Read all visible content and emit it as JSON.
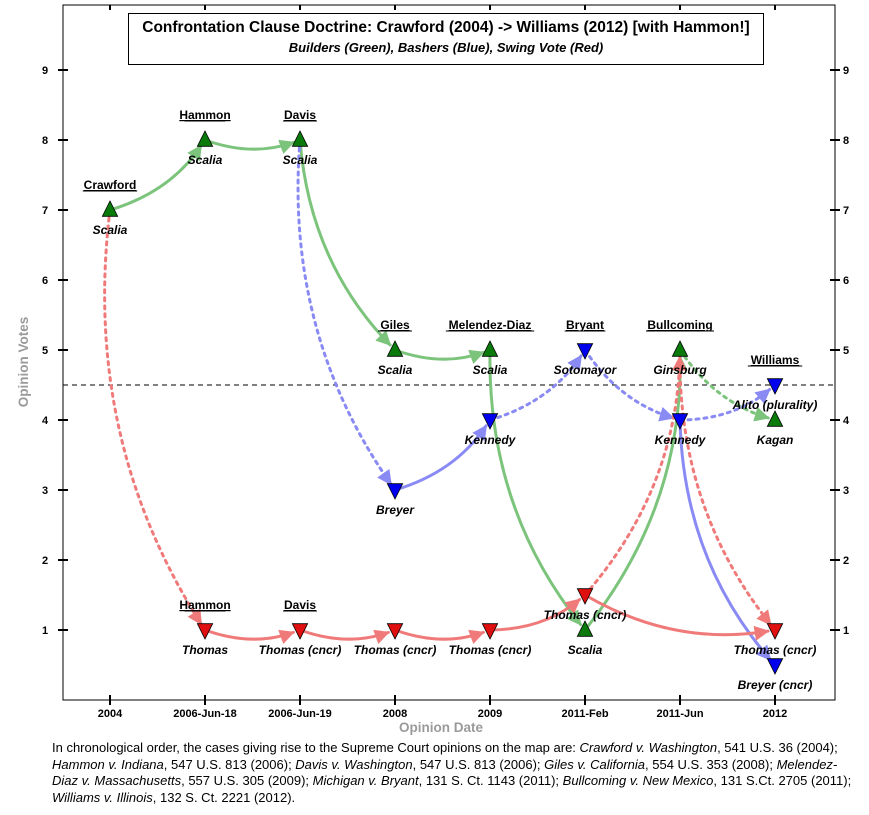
{
  "chart_data": {
    "type": "scatter",
    "title": "Confrontation Clause Doctrine: Crawford (2004) -> Williams (2012) [with Hammon!]",
    "subtitle": "Builders (Green), Bashers (Blue), Swing Vote (Red)",
    "xlabel": "Opinion Date",
    "ylabel": "Opinion Votes",
    "categories": [
      "2004",
      "2006-Jun-18",
      "2006-Jun-19",
      "2008",
      "2009",
      "2011-Feb",
      "2011-Jun",
      "2012"
    ],
    "ylim": [
      0,
      9.9
    ],
    "yticks": [
      "1",
      "2",
      "3",
      "4",
      "5",
      "6",
      "7",
      "8",
      "9"
    ],
    "threshold": 4.5,
    "grid": false,
    "colors": {
      "builders": "#0a7a0a",
      "bashers": "#0000ee",
      "swing": "#e01010"
    },
    "series": [
      {
        "name": "Builders (Green)",
        "color": "#0a7a0a",
        "marker": "triangle-up",
        "points": [
          {
            "x": "2004",
            "y": 7,
            "justice": "Scalia"
          },
          {
            "x": "2006-Jun-18",
            "y": 8,
            "justice": "Scalia"
          },
          {
            "x": "2006-Jun-19",
            "y": 8,
            "justice": "Scalia"
          },
          {
            "x": "2008",
            "y": 5,
            "justice": "Scalia"
          },
          {
            "x": "2009",
            "y": 5,
            "justice": "Scalia"
          },
          {
            "x": "2011-Feb",
            "y": 1,
            "justice": "Scalia"
          },
          {
            "x": "2011-Jun",
            "y": 5,
            "justice": "Ginsburg"
          },
          {
            "x": "2012",
            "y": 4,
            "justice": "Kagan"
          }
        ]
      },
      {
        "name": "Bashers (Blue)",
        "color": "#0000ee",
        "marker": "triangle-down",
        "points": [
          {
            "x": "2008",
            "y": 3,
            "justice": "Breyer"
          },
          {
            "x": "2009",
            "y": 4,
            "justice": "Kennedy"
          },
          {
            "x": "2011-Feb",
            "y": 5,
            "justice": "Sotomayor"
          },
          {
            "x": "2011-Jun",
            "y": 4,
            "justice": "Kennedy"
          },
          {
            "x": "2012",
            "y": 4.5,
            "justice": "Alito (plurality)"
          },
          {
            "x": "2012",
            "y": 0.5,
            "justice": "Breyer (cncr)"
          }
        ]
      },
      {
        "name": "Swing Vote (Red)",
        "color": "#e01010",
        "marker": "triangle-down",
        "points": [
          {
            "x": "2006-Jun-18",
            "y": 1,
            "justice": "Thomas"
          },
          {
            "x": "2006-Jun-19",
            "y": 1,
            "justice": "Thomas (cncr)"
          },
          {
            "x": "2008",
            "y": 1,
            "justice": "Thomas (cncr)"
          },
          {
            "x": "2009",
            "y": 1,
            "justice": "Thomas (cncr)"
          },
          {
            "x": "2011-Feb",
            "y": 1.5,
            "justice": "Thomas (cncr)"
          },
          {
            "x": "2012",
            "y": 1,
            "justice": "Thomas (cncr)"
          }
        ]
      }
    ],
    "cases": [
      {
        "x": "2004",
        "y": 7,
        "label": "Crawford"
      },
      {
        "x": "2006-Jun-18",
        "y": 8,
        "label": "Hammon"
      },
      {
        "x": "2006-Jun-19",
        "y": 8,
        "label": "Davis"
      },
      {
        "x": "2008",
        "y": 5,
        "label": "Giles"
      },
      {
        "x": "2009",
        "y": 5,
        "label": "Melendez-Diaz"
      },
      {
        "x": "2011-Feb",
        "y": 5,
        "label": "Bryant"
      },
      {
        "x": "2011-Jun",
        "y": 5,
        "label": "Bullcoming"
      },
      {
        "x": "2012",
        "y": 4.5,
        "label": "Williams"
      },
      {
        "x": "2006-Jun-18",
        "y": 1,
        "label": "Hammon"
      },
      {
        "x": "2006-Jun-19",
        "y": 1,
        "label": "Davis"
      }
    ],
    "arrows": [
      {
        "series": "builders",
        "style": "solid",
        "from": [
          "2004",
          7
        ],
        "to": [
          "2006-Jun-18",
          8
        ]
      },
      {
        "series": "builders",
        "style": "solid",
        "from": [
          "2006-Jun-18",
          8
        ],
        "to": [
          "2006-Jun-19",
          8
        ]
      },
      {
        "series": "builders",
        "style": "solid",
        "from": [
          "2006-Jun-19",
          8
        ],
        "to": [
          "2008",
          5
        ]
      },
      {
        "series": "builders",
        "style": "solid",
        "from": [
          "2008",
          5
        ],
        "to": [
          "2009",
          5
        ]
      },
      {
        "series": "builders",
        "style": "solid",
        "from": [
          "2009",
          5
        ],
        "to": [
          "2011-Feb",
          1
        ]
      },
      {
        "series": "builders",
        "style": "solid",
        "from": [
          "2011-Feb",
          1
        ],
        "to": [
          "2011-Jun",
          5
        ]
      },
      {
        "series": "builders",
        "style": "dotted",
        "from": [
          "2011-Jun",
          5
        ],
        "to": [
          "2012",
          4
        ]
      },
      {
        "series": "bashers",
        "style": "dotted",
        "from": [
          "2006-Jun-19",
          8
        ],
        "to": [
          "2008",
          3
        ]
      },
      {
        "series": "bashers",
        "style": "solid",
        "from": [
          "2008",
          3
        ],
        "to": [
          "2009",
          4
        ]
      },
      {
        "series": "bashers",
        "style": "dotted",
        "from": [
          "2009",
          4
        ],
        "to": [
          "2011-Feb",
          5
        ]
      },
      {
        "series": "bashers",
        "style": "dotted",
        "from": [
          "2011-Feb",
          5
        ],
        "to": [
          "2011-Jun",
          4
        ]
      },
      {
        "series": "bashers",
        "style": "dotted",
        "from": [
          "2011-Jun",
          4
        ],
        "to": [
          "2012",
          4.5
        ]
      },
      {
        "series": "bashers",
        "style": "solid",
        "from": [
          "2011-Jun",
          4
        ],
        "to": [
          "2012",
          0.5
        ]
      },
      {
        "series": "swing",
        "style": "dotted",
        "from": [
          "2004",
          7
        ],
        "to": [
          "2006-Jun-18",
          1
        ]
      },
      {
        "series": "swing",
        "style": "solid",
        "from": [
          "2006-Jun-18",
          1
        ],
        "to": [
          "2006-Jun-19",
          1
        ]
      },
      {
        "series": "swing",
        "style": "solid",
        "from": [
          "2006-Jun-19",
          1
        ],
        "to": [
          "2008",
          1
        ]
      },
      {
        "series": "swing",
        "style": "solid",
        "from": [
          "2008",
          1
        ],
        "to": [
          "2009",
          1
        ]
      },
      {
        "series": "swing",
        "style": "solid",
        "from": [
          "2009",
          1
        ],
        "to": [
          "2011-Feb",
          1.5
        ]
      },
      {
        "series": "swing",
        "style": "dotted",
        "from": [
          "2011-Feb",
          1.5
        ],
        "to": [
          "2011-Jun",
          5
        ]
      },
      {
        "series": "swing",
        "style": "solid",
        "from": [
          "2011-Feb",
          1.5
        ],
        "to": [
          "2012",
          1
        ]
      },
      {
        "series": "swing",
        "style": "dotted",
        "from": [
          "2011-Jun",
          5
        ],
        "to": [
          "2012",
          1
        ]
      }
    ]
  },
  "caption": {
    "intro": "In chronological order, the cases giving rise to the Supreme Court opinions on the map are:  ",
    "cases": [
      {
        "name": "Crawford v. Washington",
        "cite": ", 541 U.S. 36 (2004);  "
      },
      {
        "name": "Hammon v. Indiana",
        "cite": ", 547 U.S. 813 (2006);  "
      },
      {
        "name": "Davis v. Washington",
        "cite": ", 547 U.S. 813 (2006);  "
      },
      {
        "name": "Giles v. California",
        "cite": ", 554 U.S. 353 (2008);  "
      },
      {
        "name": "Melendez-Diaz v. Massachusetts",
        "cite": ", 557 U.S. 305 (2009);  "
      },
      {
        "name": "Michigan v. Bryant",
        "cite": ", 131 S. Ct. 1143 (2011);  "
      },
      {
        "name": "Bullcoming v. New Mexico",
        "cite": ", 131 S.Ct. 2705 (2011);  "
      },
      {
        "name": "Williams v. Illinois",
        "cite": ", 132 S. Ct. 2221 (2012)."
      }
    ]
  }
}
